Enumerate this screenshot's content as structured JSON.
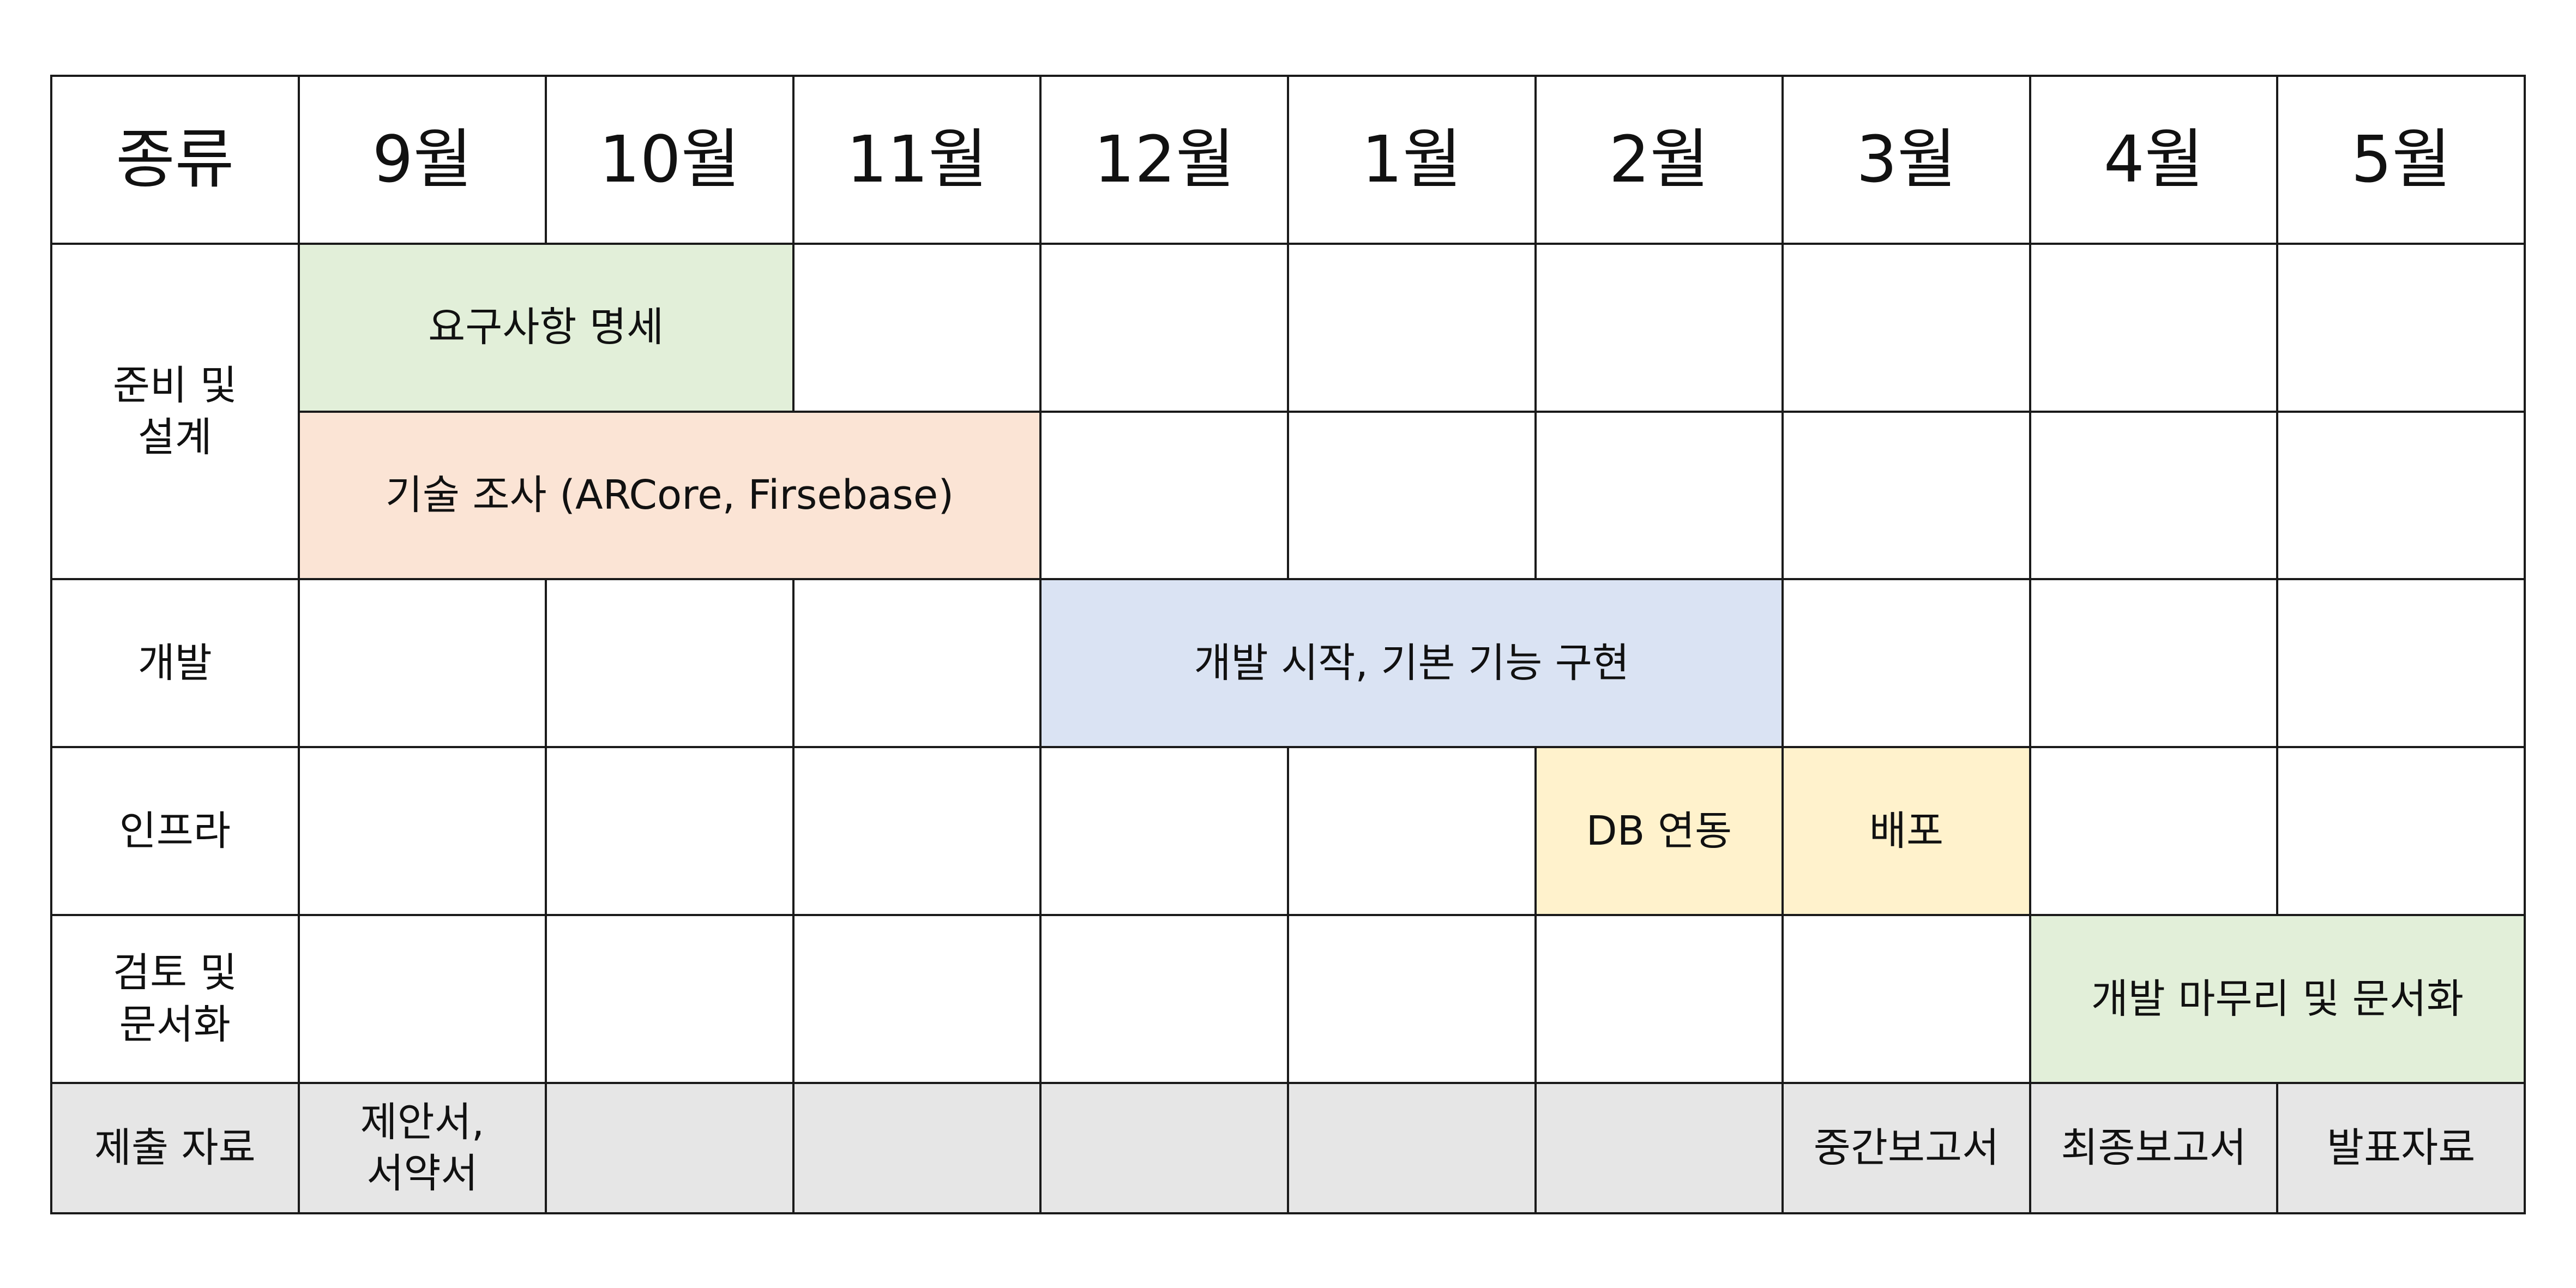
{
  "header": {
    "category_label": "종류",
    "months": [
      "9월",
      "10월",
      "11월",
      "12월",
      "1월",
      "2월",
      "3월",
      "4월",
      "5월"
    ]
  },
  "rows": {
    "prep": {
      "label": "준비 및\n설계",
      "task_requirements": "요구사항 명세",
      "task_research": "기술 조사 (ARCore, Firsebase)"
    },
    "dev": {
      "label": "개발",
      "task": "개발 시작, 기본 기능 구현"
    },
    "infra": {
      "label": "인프라",
      "task_db": "DB 연동",
      "task_deploy": "배포"
    },
    "review": {
      "label": "검토 및\n문서화",
      "task": "개발 마무리 및 문서화"
    },
    "submission": {
      "label": "제출 자료",
      "sep": "제안서,\n서약서",
      "mar": "중간보고서",
      "apr": "최종보고서",
      "may": "발표자료"
    }
  },
  "colors": {
    "green": "#e2efd9",
    "orange": "#fbe4d5",
    "blue": "#dae3f3",
    "yellow": "#fff2cc",
    "gray": "#e6e6e6"
  }
}
